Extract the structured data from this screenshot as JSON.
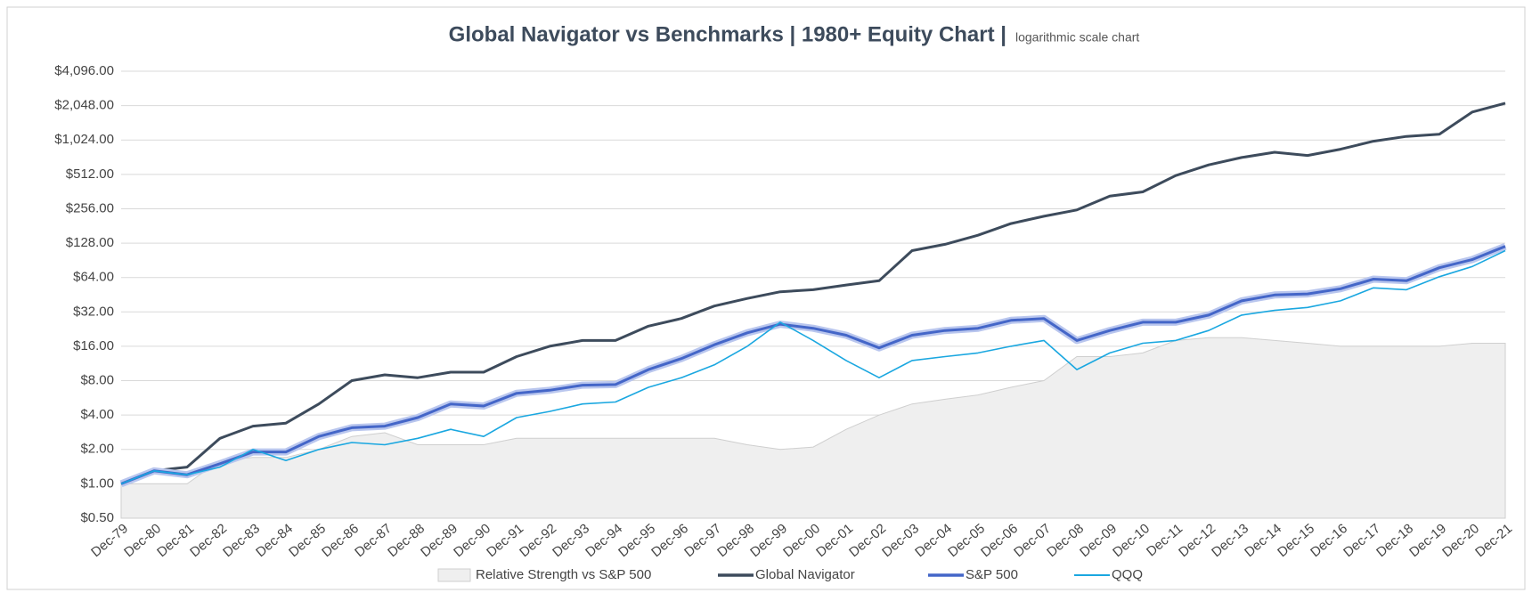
{
  "chart_data": {
    "type": "line",
    "title": "Global Navigator vs Benchmarks | 1980+ Equity Chart |",
    "subtitle": "logarithmic scale chart",
    "categories": [
      "Dec-79",
      "Dec-80",
      "Dec-81",
      "Dec-82",
      "Dec-83",
      "Dec-84",
      "Dec-85",
      "Dec-86",
      "Dec-87",
      "Dec-88",
      "Dec-89",
      "Dec-90",
      "Dec-91",
      "Dec-92",
      "Dec-93",
      "Dec-94",
      "Dec-95",
      "Dec-96",
      "Dec-97",
      "Dec-98",
      "Dec-99",
      "Dec-00",
      "Dec-01",
      "Dec-02",
      "Dec-03",
      "Dec-04",
      "Dec-05",
      "Dec-06",
      "Dec-07",
      "Dec-08",
      "Dec-09",
      "Dec-10",
      "Dec-11",
      "Dec-12",
      "Dec-13",
      "Dec-14",
      "Dec-15",
      "Dec-16",
      "Dec-17",
      "Dec-18",
      "Dec-19",
      "Dec-20",
      "Dec-21"
    ],
    "series": [
      {
        "name": "Relative Strength vs S&P 500",
        "type": "area",
        "color": "#efefef",
        "values": [
          1.0,
          1.0,
          1.0,
          1.6,
          1.7,
          1.7,
          2.0,
          2.6,
          2.8,
          2.2,
          2.2,
          2.2,
          2.5,
          2.5,
          2.5,
          2.5,
          2.5,
          2.5,
          2.5,
          2.2,
          2.0,
          2.1,
          3.0,
          4.0,
          5.0,
          5.5,
          6.0,
          7.0,
          8.0,
          13,
          13,
          14,
          18,
          19,
          19,
          18,
          17,
          16,
          16,
          16,
          16,
          17,
          17
        ]
      },
      {
        "name": "Global Navigator",
        "type": "line",
        "color": "#3d4b5c",
        "values": [
          1.0,
          1.3,
          1.4,
          2.5,
          3.2,
          3.4,
          5,
          8,
          9,
          8.5,
          9.5,
          9.5,
          13,
          16,
          18,
          18,
          24,
          28,
          36,
          42,
          48,
          50,
          55,
          60,
          110,
          125,
          150,
          190,
          220,
          250,
          330,
          360,
          500,
          620,
          720,
          800,
          750,
          850,
          1000,
          1100,
          1150,
          1800,
          2150
        ]
      },
      {
        "name": "S&P 500",
        "type": "line",
        "color": "#4466c8",
        "values": [
          1.0,
          1.3,
          1.2,
          1.5,
          1.9,
          1.9,
          2.6,
          3.1,
          3.2,
          3.8,
          5,
          4.8,
          6.2,
          6.6,
          7.3,
          7.4,
          10,
          12.5,
          16.5,
          21,
          25,
          23,
          20,
          15.5,
          20,
          22,
          23,
          27,
          28,
          18,
          22,
          26,
          26,
          30,
          40,
          45,
          46,
          51,
          62,
          60,
          78,
          92,
          120
        ]
      },
      {
        "name": "QQQ",
        "type": "line",
        "color": "#1aa7e0",
        "values": [
          1.0,
          1.3,
          1.2,
          1.4,
          2.0,
          1.6,
          2.0,
          2.3,
          2.2,
          2.5,
          3.0,
          2.6,
          3.8,
          4.3,
          5,
          5.2,
          7,
          8.5,
          11,
          16,
          26,
          18,
          12,
          8.5,
          12,
          13,
          14,
          16,
          18,
          10,
          14,
          17,
          18,
          22,
          30,
          33,
          35,
          40,
          52,
          50,
          65,
          80,
          110
        ]
      }
    ],
    "ylim": [
      0.5,
      4096
    ],
    "yscale": "log",
    "grid": true,
    "yticks": [
      {
        "value": 0.5,
        "label": "$0.50"
      },
      {
        "value": 1,
        "label": "$1.00"
      },
      {
        "value": 2,
        "label": "$2.00"
      },
      {
        "value": 4,
        "label": "$4.00"
      },
      {
        "value": 8,
        "label": "$8.00"
      },
      {
        "value": 16,
        "label": "$16.00"
      },
      {
        "value": 32,
        "label": "$32.00"
      },
      {
        "value": 64,
        "label": "$64.00"
      },
      {
        "value": 128,
        "label": "$128.00"
      },
      {
        "value": 256,
        "label": "$256.00"
      },
      {
        "value": 512,
        "label": "$512.00"
      },
      {
        "value": 1024,
        "label": "$1,024.00"
      },
      {
        "value": 2048,
        "label": "$2,048.00"
      },
      {
        "value": 4096,
        "label": "$4,096.00"
      }
    ],
    "legend": "bottom"
  }
}
